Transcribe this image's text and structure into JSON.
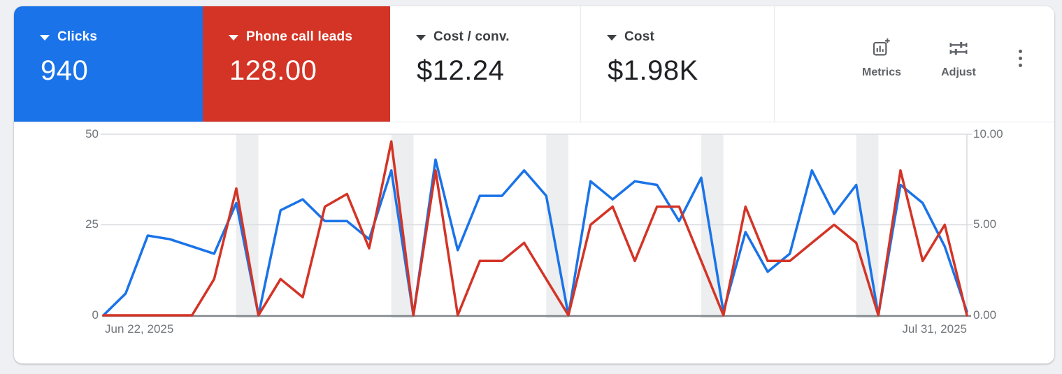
{
  "cards": [
    {
      "label": "Clicks",
      "value": "940"
    },
    {
      "label": "Phone call leads",
      "value": "128.00"
    },
    {
      "label": "Cost / conv.",
      "value": "$12.24"
    },
    {
      "label": "Cost",
      "value": "$1.98K"
    }
  ],
  "toolbar": {
    "metrics_label": "Metrics",
    "adjust_label": "Adjust",
    "more_options_icon": "kebab-vertical-dots",
    "metrics_icon": "bar-chart-with-plus",
    "adjust_icon": "sliders"
  },
  "colors": {
    "page_bg": "#eef0f3",
    "card_bg": "#ffffff",
    "clicks_blue": "#1a73e8",
    "leads_red": "#d33426",
    "gridline": "#dadce0",
    "baseline": "#80868b",
    "axis_text": "#70757a",
    "weekend_band": "#eceef0"
  },
  "chart_data": {
    "type": "line",
    "title": "",
    "xlabel": "",
    "x_start_label": "Jun 22, 2025",
    "x_end_label": "Jul 31, 2025",
    "left_axis": {
      "label": "Clicks",
      "ticks": [
        "50",
        "25",
        "0"
      ],
      "range": [
        0,
        50
      ]
    },
    "right_axis": {
      "label": "Phone call leads",
      "ticks": [
        "10.00",
        "5.00",
        "0.00"
      ],
      "range": [
        0,
        10
      ]
    },
    "grid": "horizontal",
    "legend": "none",
    "dates": [
      "Jun 22",
      "Jun 23",
      "Jun 24",
      "Jun 25",
      "Jun 26",
      "Jun 27",
      "Jun 28",
      "Jun 29",
      "Jun 30",
      "Jul 1",
      "Jul 2",
      "Jul 3",
      "Jul 4",
      "Jul 5",
      "Jul 6",
      "Jul 7",
      "Jul 8",
      "Jul 9",
      "Jul 10",
      "Jul 11",
      "Jul 12",
      "Jul 13",
      "Jul 14",
      "Jul 15",
      "Jul 16",
      "Jul 17",
      "Jul 18",
      "Jul 19",
      "Jul 20",
      "Jul 21",
      "Jul 22",
      "Jul 23",
      "Jul 24",
      "Jul 25",
      "Jul 26",
      "Jul 27",
      "Jul 28",
      "Jul 29",
      "Jul 30",
      "Jul 31"
    ],
    "series": [
      {
        "name": "Clicks",
        "axis": "left",
        "color": "#1a73e8",
        "values": [
          0,
          6,
          22,
          21,
          19,
          17,
          31,
          0,
          29,
          32,
          26,
          26,
          21,
          40,
          0,
          43,
          18,
          33,
          33,
          40,
          33,
          0,
          37,
          32,
          37,
          36,
          26,
          38,
          1,
          23,
          12,
          17,
          40,
          28,
          36,
          0,
          36,
          31,
          19,
          1
        ]
      },
      {
        "name": "Phone call leads",
        "axis": "right",
        "color": "#d33426",
        "values": [
          0,
          0,
          0,
          0,
          0,
          2,
          7,
          0,
          2,
          1,
          6,
          6.7,
          3.7,
          9.6,
          0,
          8,
          0,
          3,
          3,
          4,
          2,
          0,
          5,
          6,
          3,
          6,
          6,
          3,
          0,
          6,
          3,
          3,
          4,
          5,
          4,
          0,
          8,
          3,
          5,
          0
        ]
      }
    ],
    "weekend_bands": [
      [
        6,
        7
      ],
      [
        13,
        14
      ],
      [
        20,
        21
      ],
      [
        27,
        28
      ],
      [
        34,
        35
      ]
    ],
    "weekend_band_color": "#eceef0"
  }
}
